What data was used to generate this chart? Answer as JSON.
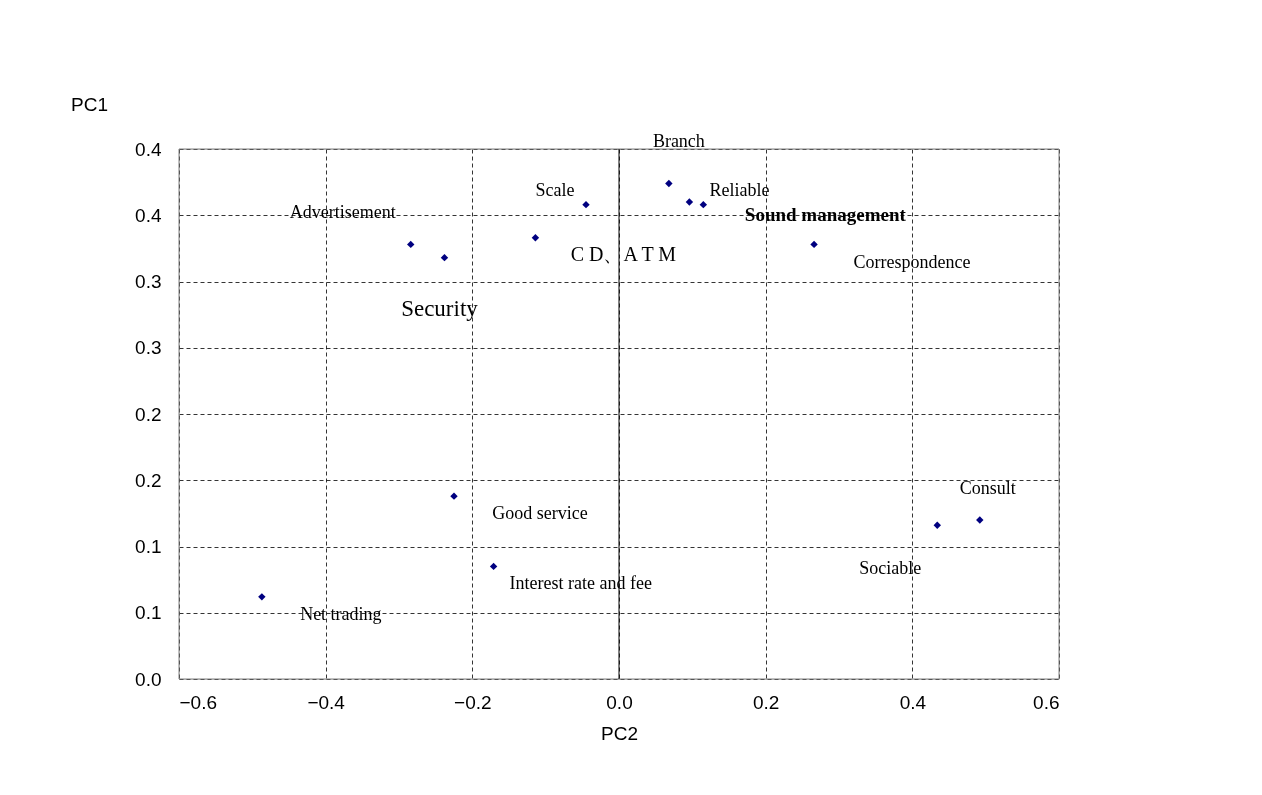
{
  "chart_data": {
    "type": "scatter",
    "xlabel": "PC2",
    "ylabel": "PC1",
    "x": [
      -0.487,
      -0.225,
      -0.171,
      -0.284,
      -0.238,
      -0.114,
      -0.045,
      0.068,
      0.096,
      0.115,
      0.266,
      0.434,
      0.492
    ],
    "series": [
      {
        "color": "#000080",
        "values": [
          0.062,
          0.138,
          0.085,
          0.328,
          0.318,
          0.333,
          0.358,
          0.374,
          0.36,
          0.358,
          0.328,
          0.116,
          0.12
        ]
      }
    ],
    "marker": "diamond",
    "annotations": [
      {
        "text": "Net trading",
        "x": -0.487,
        "y": 0.062
      },
      {
        "text": "Good service",
        "x": -0.225,
        "y": 0.138
      },
      {
        "text": "Interest rate and fee",
        "x": -0.171,
        "y": 0.085
      },
      {
        "text": "Advertisement",
        "x": -0.284,
        "y": 0.328
      },
      {
        "text": "Security",
        "x": -0.238,
        "y": 0.318
      },
      {
        "text": "C D、A T M",
        "x": -0.114,
        "y": 0.333
      },
      {
        "text": "Scale",
        "x": -0.045,
        "y": 0.358
      },
      {
        "text": "Branch",
        "x": 0.068,
        "y": 0.374
      },
      {
        "text": "Reliable",
        "x": 0.096,
        "y": 0.36
      },
      {
        "text": "Sound management",
        "x": 0.115,
        "y": 0.358
      },
      {
        "text": "Correspondence",
        "x": 0.266,
        "y": 0.328
      },
      {
        "text": "Sociable",
        "x": 0.434,
        "y": 0.116
      },
      {
        "text": "Consult",
        "x": 0.492,
        "y": 0.12
      }
    ],
    "xlim": [
      -0.6,
      0.6
    ],
    "xticks": [
      {
        "value": -0.6,
        "label": "−0.6"
      },
      {
        "value": -0.4,
        "label": "−0.4"
      },
      {
        "value": -0.2,
        "label": "−0.2"
      },
      {
        "value": 0.0,
        "label": "0.0"
      },
      0.2,
      0.4,
      0.6
    ],
    "ylim": [
      0.0,
      0.4
    ],
    "yticks": [
      {
        "value": 0.0,
        "label": "0.0"
      },
      {
        "value": 0.05,
        "label": "0.1"
      },
      {
        "value": 0.1,
        "label": "0.1"
      },
      {
        "value": 0.15,
        "label": "0.2"
      },
      {
        "value": 0.2,
        "label": "0.2"
      },
      {
        "value": 0.25,
        "label": "0.3"
      },
      {
        "value": 0.3,
        "label": "0.3"
      },
      {
        "value": 0.35,
        "label": "0.4"
      },
      {
        "value": 0.4,
        "label": "0.4"
      }
    ],
    "ref_lines": [
      {
        "axis": "x",
        "value": 0.0,
        "color": "#000000",
        "line_style": "solid"
      }
    ],
    "grid": true
  }
}
